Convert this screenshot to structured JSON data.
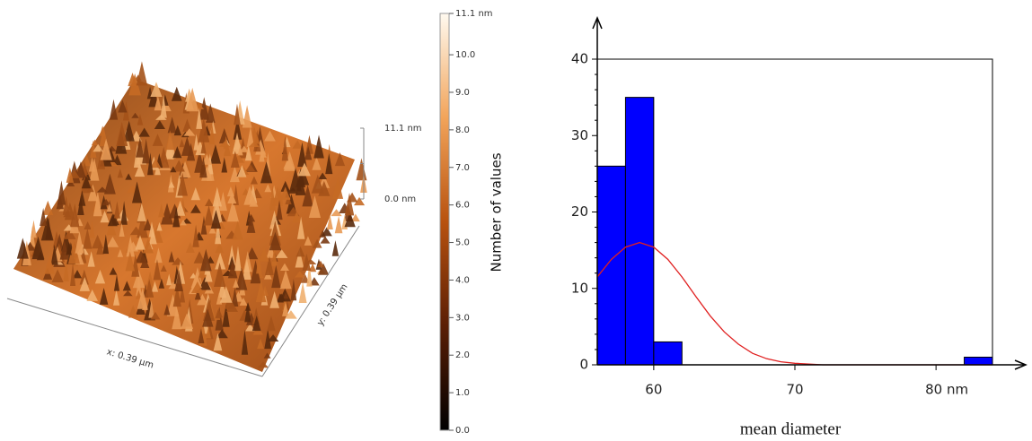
{
  "chart_data": [
    {
      "type": "surface",
      "xlabel": "x: 0.39 µm",
      "ylabel": "y: 0.39 µm",
      "z_scale": [
        {
          "value": 11.1,
          "label": "11.1 nm"
        },
        {
          "value": 0,
          "label": "0.0 nm"
        }
      ],
      "zlim": [
        0,
        11.1
      ],
      "zticks": [
        {
          "value": 0,
          "label": "0.0"
        },
        {
          "value": 1,
          "label": "1.0"
        },
        {
          "value": 2,
          "label": "2.0"
        },
        {
          "value": 3,
          "label": "3.0"
        },
        {
          "value": 4,
          "label": "4.0"
        },
        {
          "value": 5,
          "label": "5.0"
        },
        {
          "value": 6,
          "label": "6.0"
        },
        {
          "value": 7,
          "label": "7.0"
        },
        {
          "value": 8,
          "label": "8.0"
        },
        {
          "value": 9,
          "label": "9.0"
        },
        {
          "value": 10,
          "label": "10.0"
        },
        {
          "value": 11.1,
          "label": "11.1 nm"
        }
      ]
    },
    {
      "type": "histogram",
      "xlabel": "mean diameter",
      "ylabel": "Number of values",
      "bins": [
        56,
        58,
        60,
        62,
        64,
        66,
        68,
        70,
        72,
        74,
        76,
        78,
        80,
        82,
        84
      ],
      "values": [
        26,
        35,
        3,
        0,
        0,
        0,
        0,
        0,
        0,
        0,
        0,
        0,
        0,
        1
      ],
      "color": "#0000ff",
      "xlim": [
        56,
        84
      ],
      "ylim": [
        0,
        40
      ],
      "xticks": [
        60,
        70,
        {
          "value": 80,
          "label": "80 nm"
        }
      ],
      "yticks": [
        0,
        10,
        20,
        30,
        40
      ],
      "fit": {
        "color": "#e02020",
        "x": [
          56,
          57,
          58,
          59,
          60,
          61,
          62,
          63,
          64,
          65,
          66,
          67,
          68,
          69,
          70,
          72,
          76,
          80,
          84
        ],
        "values": [
          11.5,
          13.8,
          15.4,
          16,
          15.4,
          13.8,
          11.5,
          8.9,
          6.4,
          4.3,
          2.7,
          1.5,
          0.8,
          0.4,
          0.2,
          0,
          0,
          0,
          0
        ]
      }
    }
  ]
}
